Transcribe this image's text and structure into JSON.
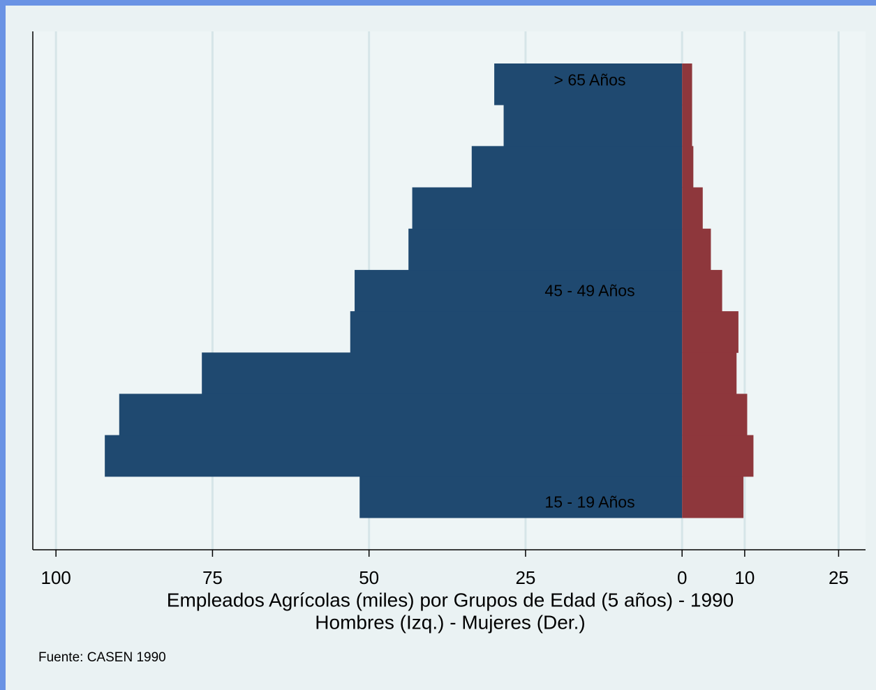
{
  "chart_data": {
    "type": "pyramid",
    "title": "Empleados Agrícolas (miles) por Grupos de Edad (5 años) - 1990",
    "subtitle": "Hombres (Izq.) - Mujeres (Der.)",
    "note": "Fuente: CASEN 1990",
    "categories": [
      "15 - 19 Años",
      null,
      null,
      null,
      null,
      "45 - 49 Años",
      null,
      null,
      null,
      null,
      "> 65 Años"
    ],
    "series": [
      {
        "color": "#1f4970",
        "values": [
          -51.5,
          -92.2,
          -89.9,
          -76.7,
          -53.0,
          -52.3,
          -43.7,
          -43.1,
          -33.6,
          -28.5,
          -30.0
        ]
      },
      {
        "color": "#8e373c",
        "values": [
          9.8,
          11.4,
          10.4,
          8.7,
          9.0,
          6.4,
          4.6,
          3.3,
          1.8,
          1.6,
          1.6
        ]
      }
    ],
    "xlim": [
      -103.7,
      29.3
    ],
    "xticks": [
      {
        "value": -100,
        "label": "100"
      },
      {
        "value": -75,
        "label": "75"
      },
      {
        "value": -50,
        "label": "50"
      },
      {
        "value": -25,
        "label": "25"
      },
      0,
      10,
      25
    ],
    "grid": true
  }
}
